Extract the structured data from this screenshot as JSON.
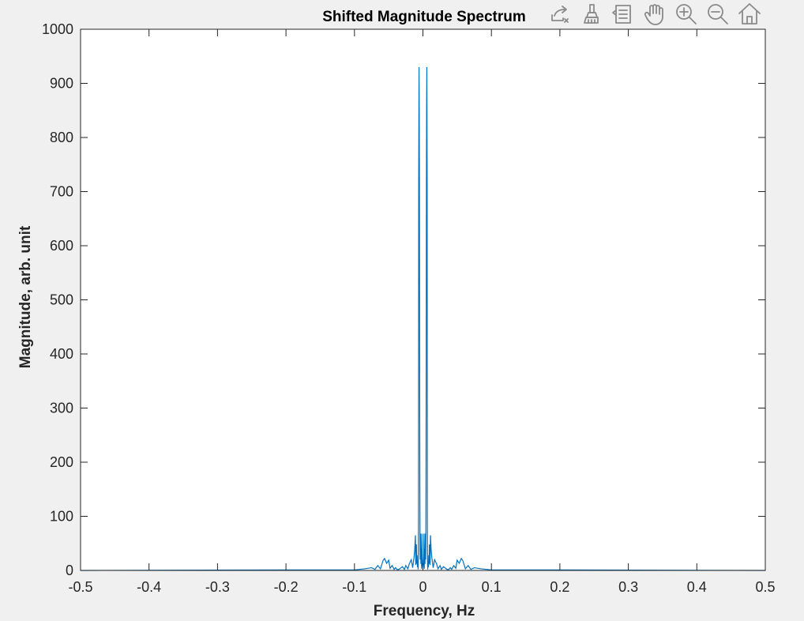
{
  "chart_data": {
    "type": "line",
    "title": "Shifted Magnitude Spectrum",
    "xlabel": "Frequency, Hz",
    "ylabel": "Magnitude, arb. unit",
    "xlim": [
      -0.5,
      0.5
    ],
    "ylim": [
      0,
      1000
    ],
    "x_ticks": [
      "-0.5",
      "-0.4",
      "-0.3",
      "-0.2",
      "-0.1",
      "0",
      "0.1",
      "0.2",
      "0.3",
      "0.4",
      "0.5"
    ],
    "y_ticks": [
      "0",
      "100",
      "200",
      "300",
      "400",
      "500",
      "600",
      "700",
      "800",
      "900",
      "1000"
    ],
    "grid": false,
    "line_color": "#0072BD",
    "series": [
      {
        "points": [
          [
            -0.5,
            0
          ],
          [
            -0.2,
            1
          ],
          [
            -0.1,
            1
          ],
          [
            -0.085,
            3
          ],
          [
            -0.075,
            5
          ],
          [
            -0.07,
            2
          ],
          [
            -0.066,
            9
          ],
          [
            -0.062,
            3
          ],
          [
            -0.058,
            19
          ],
          [
            -0.056,
            22
          ],
          [
            -0.053,
            13
          ],
          [
            -0.05,
            19
          ],
          [
            -0.048,
            4
          ],
          [
            -0.045,
            9
          ],
          [
            -0.042,
            2
          ],
          [
            -0.04,
            5
          ],
          [
            -0.037,
            1
          ],
          [
            -0.034,
            3
          ],
          [
            -0.03,
            7
          ],
          [
            -0.027,
            2
          ],
          [
            -0.025,
            9
          ],
          [
            -0.022,
            3
          ],
          [
            -0.02,
            12
          ],
          [
            -0.017,
            20
          ],
          [
            -0.015,
            5
          ],
          [
            -0.013,
            24
          ],
          [
            -0.012,
            38
          ],
          [
            -0.011,
            65
          ],
          [
            -0.0105,
            10
          ],
          [
            -0.01,
            38
          ],
          [
            -0.0095,
            48
          ],
          [
            -0.009,
            12
          ],
          [
            -0.0085,
            28
          ],
          [
            -0.008,
            6
          ],
          [
            -0.0075,
            18
          ],
          [
            -0.007,
            2
          ],
          [
            -0.0068,
            10
          ],
          [
            -0.0065,
            80
          ],
          [
            -0.0062,
            710
          ],
          [
            -0.006,
            800
          ],
          [
            -0.0057,
            930
          ],
          [
            -0.0054,
            850
          ],
          [
            -0.0051,
            710
          ],
          [
            -0.0048,
            400
          ],
          [
            -0.0045,
            150
          ],
          [
            -0.0042,
            40
          ],
          [
            -0.004,
            20
          ],
          [
            -0.0035,
            68
          ],
          [
            -0.003,
            12
          ],
          [
            -0.0025,
            40
          ],
          [
            -0.002,
            3
          ],
          [
            -0.0015,
            68
          ],
          [
            -0.001,
            25
          ],
          [
            -0.0005,
            10
          ],
          [
            0,
            5
          ],
          [
            0.0005,
            10
          ],
          [
            0.001,
            25
          ],
          [
            0.0015,
            68
          ],
          [
            0.002,
            3
          ],
          [
            0.0025,
            40
          ],
          [
            0.003,
            12
          ],
          [
            0.0035,
            68
          ],
          [
            0.004,
            20
          ],
          [
            0.0042,
            40
          ],
          [
            0.0045,
            150
          ],
          [
            0.0048,
            400
          ],
          [
            0.0051,
            710
          ],
          [
            0.0054,
            850
          ],
          [
            0.0057,
            930
          ],
          [
            0.006,
            800
          ],
          [
            0.0062,
            710
          ],
          [
            0.0065,
            80
          ],
          [
            0.0068,
            10
          ],
          [
            0.007,
            2
          ],
          [
            0.0075,
            18
          ],
          [
            0.008,
            6
          ],
          [
            0.0085,
            28
          ],
          [
            0.009,
            12
          ],
          [
            0.0095,
            48
          ],
          [
            0.01,
            38
          ],
          [
            0.0105,
            10
          ],
          [
            0.011,
            65
          ],
          [
            0.012,
            38
          ],
          [
            0.013,
            24
          ],
          [
            0.015,
            5
          ],
          [
            0.017,
            20
          ],
          [
            0.02,
            12
          ],
          [
            0.022,
            3
          ],
          [
            0.025,
            9
          ],
          [
            0.027,
            2
          ],
          [
            0.03,
            7
          ],
          [
            0.034,
            3
          ],
          [
            0.037,
            1
          ],
          [
            0.04,
            5
          ],
          [
            0.042,
            2
          ],
          [
            0.045,
            9
          ],
          [
            0.048,
            4
          ],
          [
            0.05,
            19
          ],
          [
            0.053,
            13
          ],
          [
            0.056,
            22
          ],
          [
            0.058,
            19
          ],
          [
            0.062,
            3
          ],
          [
            0.066,
            9
          ],
          [
            0.07,
            2
          ],
          [
            0.075,
            5
          ],
          [
            0.085,
            3
          ],
          [
            0.1,
            1
          ],
          [
            0.2,
            1
          ],
          [
            0.5,
            0
          ]
        ]
      }
    ]
  },
  "toolbar": [
    {
      "name": "export-icon",
      "hint": "export"
    },
    {
      "name": "brush-icon",
      "hint": "brush"
    },
    {
      "name": "data-tips-icon",
      "hint": "data tips"
    },
    {
      "name": "pan-hand-icon",
      "hint": "pan"
    },
    {
      "name": "zoom-in-icon",
      "hint": "zoom in"
    },
    {
      "name": "zoom-out-icon",
      "hint": "zoom out"
    },
    {
      "name": "home-icon",
      "hint": "restore view"
    }
  ]
}
